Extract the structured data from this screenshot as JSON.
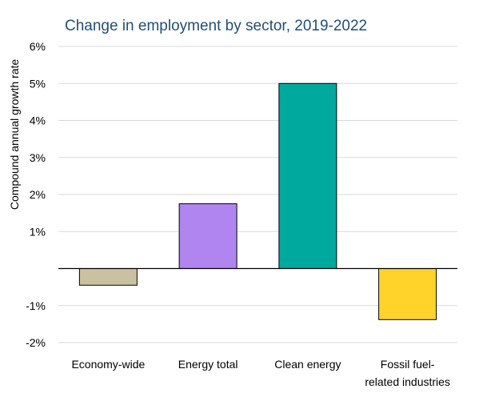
{
  "chart_data": {
    "type": "bar",
    "title": "Change in employment by sector, 2019-2022",
    "ylabel": "Compound annual growth rate",
    "xlabel": "",
    "ylim": [
      -2,
      6
    ],
    "yticks": [
      {
        "value": 6,
        "label": "6%"
      },
      {
        "value": 5,
        "label": "5%"
      },
      {
        "value": 4,
        "label": "4%"
      },
      {
        "value": 3,
        "label": "3%"
      },
      {
        "value": 2,
        "label": "2%"
      },
      {
        "value": 1,
        "label": "1%"
      },
      {
        "value": -1,
        "label": "-1%"
      },
      {
        "value": -2,
        "label": "-2%"
      }
    ],
    "grid": true,
    "categories": [
      {
        "lines": [
          "Economy-wide"
        ]
      },
      {
        "lines": [
          "Energy total"
        ]
      },
      {
        "lines": [
          "Clean energy"
        ]
      },
      {
        "lines": [
          "Fossil fuel-",
          "related industries"
        ]
      }
    ],
    "values": [
      -0.45,
      1.75,
      5.0,
      -1.38
    ],
    "colors": [
      "#c9c1a0",
      "#b185f0",
      "#00a99d",
      "#ffd32a"
    ]
  }
}
